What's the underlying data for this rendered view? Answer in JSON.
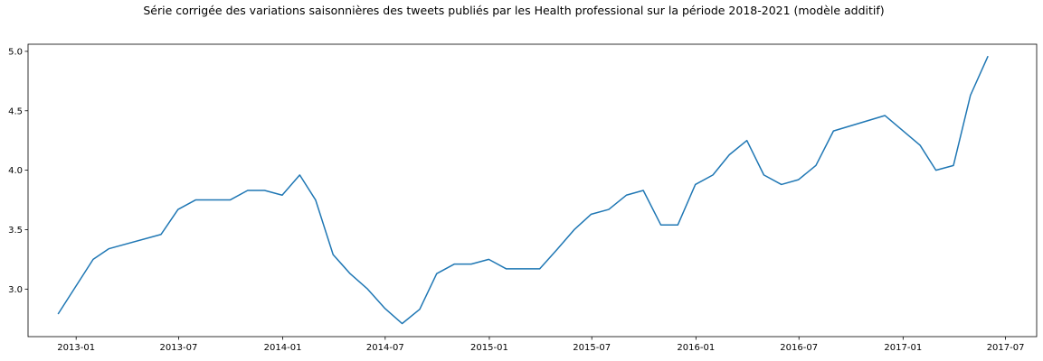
{
  "chart_data": {
    "type": "line",
    "title": "Série corrigée des variations saisonnières des tweets publiés par les Health professional sur la période 2018-2021 (modèle additif)",
    "xlabel": "",
    "ylabel": "",
    "x_axis_type": "date",
    "xlim": [
      "2012-10-08",
      "2017-08-25"
    ],
    "ylim": [
      2.6,
      5.06
    ],
    "grid": false,
    "legend": "none",
    "x_ticks": [
      "2013-01",
      "2013-07",
      "2014-01",
      "2014-07",
      "2015-01",
      "2015-07",
      "2016-01",
      "2016-07",
      "2017-01",
      "2017-07"
    ],
    "y_ticks": [
      3.0,
      3.5,
      4.0,
      4.5,
      5.0
    ],
    "y_tick_labels": [
      "3.0",
      "3.5",
      "4.0",
      "4.5",
      "5.0"
    ],
    "series": [
      {
        "color": "#1f77b4",
        "x": [
          "2012-11-30",
          "2013-01-31",
          "2013-02-28",
          "2013-05-31",
          "2013-06-30",
          "2013-07-31",
          "2013-08-31",
          "2013-09-30",
          "2013-10-31",
          "2013-11-30",
          "2013-12-31",
          "2014-01-31",
          "2014-02-28",
          "2014-03-31",
          "2014-04-30",
          "2014-05-31",
          "2014-06-30",
          "2014-07-31",
          "2014-08-31",
          "2014-09-30",
          "2014-10-31",
          "2014-11-30",
          "2014-12-31",
          "2015-01-31",
          "2015-02-28",
          "2015-03-31",
          "2015-04-30",
          "2015-05-31",
          "2015-06-30",
          "2015-07-31",
          "2015-08-31",
          "2015-09-30",
          "2015-10-31",
          "2015-11-30",
          "2015-12-31",
          "2016-01-31",
          "2016-02-29",
          "2016-03-31",
          "2016-04-30",
          "2016-05-31",
          "2016-06-30",
          "2016-07-31",
          "2016-08-31",
          "2016-11-30",
          "2017-01-31",
          "2017-02-28",
          "2017-03-31",
          "2017-04-30",
          "2017-05-31"
        ],
        "values": [
          2.79,
          3.25,
          3.34,
          3.46,
          3.67,
          3.75,
          3.75,
          3.75,
          3.83,
          3.83,
          3.79,
          3.96,
          3.75,
          3.29,
          3.13,
          3.0,
          2.84,
          2.71,
          2.83,
          3.13,
          3.21,
          3.21,
          3.25,
          3.17,
          3.17,
          3.17,
          3.33,
          3.5,
          3.63,
          3.67,
          3.79,
          3.83,
          3.54,
          3.54,
          3.88,
          3.96,
          4.13,
          4.25,
          3.96,
          3.88,
          3.92,
          4.04,
          4.33,
          4.46,
          4.21,
          4.0,
          4.04,
          4.63,
          4.96
        ]
      }
    ]
  }
}
